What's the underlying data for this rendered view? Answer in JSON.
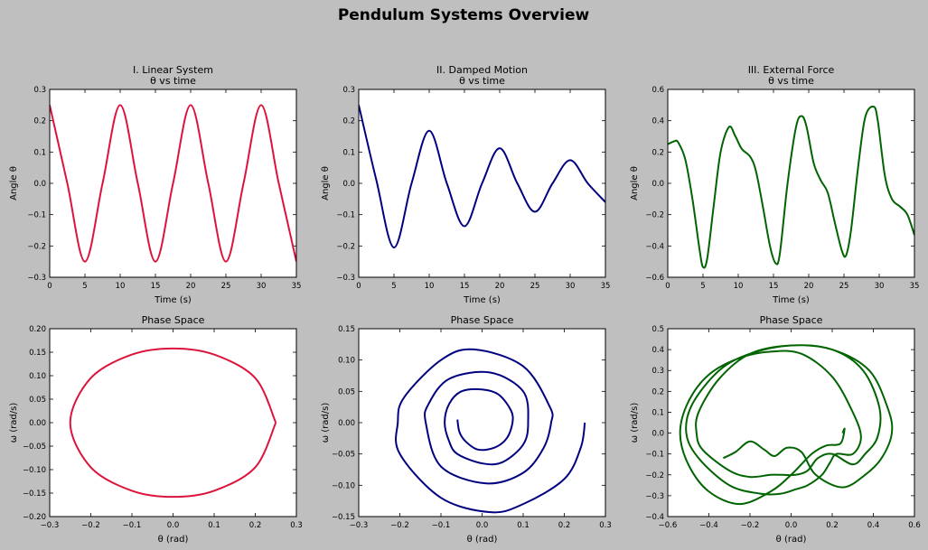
{
  "figure": {
    "suptitle": "Pendulum Systems Overview"
  },
  "chart_data": [
    {
      "type": "line",
      "title": "I. Linear System\nθ vs time",
      "xlabel": "Time (s)",
      "ylabel": "Angle θ",
      "xlim": [
        0,
        35
      ],
      "ylim": [
        -0.3,
        0.3
      ],
      "xticks": [
        0,
        5,
        10,
        15,
        20,
        25,
        30,
        35
      ],
      "xtick_labels": [
        "0",
        "5",
        "10",
        "15",
        "20",
        "25",
        "30",
        "35"
      ],
      "yticks": [
        -0.3,
        -0.2,
        -0.1,
        0,
        0.1,
        0.2,
        0.3
      ],
      "ytick_labels": [
        "−0.3",
        "−0.2",
        "−0.1",
        "0.0",
        "0.1",
        "0.2",
        "0.3"
      ],
      "color": "#dc143c",
      "series": [
        {
          "x": [
            0,
            2.5,
            5,
            7.5,
            10,
            12.5,
            15,
            17.5,
            20,
            22.5,
            25,
            27.5,
            30,
            32.5,
            35
          ],
          "y": [
            0.25,
            0,
            -0.25,
            0,
            0.25,
            0,
            -0.25,
            0,
            0.25,
            0,
            -0.25,
            0,
            0.25,
            0,
            -0.25
          ]
        }
      ]
    },
    {
      "type": "line",
      "title": "II. Damped Motion\nθ vs time",
      "xlabel": "Time (s)",
      "ylabel": "Angle θ",
      "xlim": [
        0,
        35
      ],
      "ylim": [
        -0.3,
        0.3
      ],
      "xticks": [
        0,
        5,
        10,
        15,
        20,
        25,
        30,
        35
      ],
      "xtick_labels": [
        "0",
        "5",
        "10",
        "15",
        "20",
        "25",
        "30",
        "35"
      ],
      "yticks": [
        -0.3,
        -0.2,
        -0.1,
        0,
        0.1,
        0.2,
        0.3
      ],
      "ytick_labels": [
        "−0.3",
        "−0.2",
        "−0.1",
        "0.0",
        "0.1",
        "0.2",
        "0.3"
      ],
      "color": "#000080",
      "series": [
        {
          "x": [
            0,
            2.5,
            5,
            7.5,
            10,
            12.5,
            15,
            17.5,
            20,
            22.5,
            25,
            27.5,
            30,
            32.5,
            35
          ],
          "y": [
            0.25,
            0.01,
            -0.205,
            0.0,
            0.168,
            0.0,
            -0.137,
            0.0,
            0.112,
            0.0,
            -0.091,
            0.0,
            0.074,
            0.0,
            -0.06
          ]
        }
      ]
    },
    {
      "type": "line",
      "title": "III. External Force\nθ vs time",
      "xlabel": "Time (s)",
      "ylabel": "Angle θ",
      "xlim": [
        0,
        35
      ],
      "ylim": [
        -0.6,
        0.6
      ],
      "xticks": [
        0,
        5,
        10,
        15,
        20,
        25,
        30,
        35
      ],
      "xtick_labels": [
        "0",
        "5",
        "10",
        "15",
        "20",
        "25",
        "30",
        "35"
      ],
      "yticks": [
        -0.6,
        -0.4,
        -0.2,
        0,
        0.2,
        0.4,
        0.6
      ],
      "ytick_labels": [
        "−0.6",
        "−0.4",
        "−0.2",
        "0.0",
        "0.2",
        "0.4",
        "0.6"
      ],
      "color": "#006400",
      "series": [
        {
          "x": [
            0,
            1,
            1.5,
            2.5,
            3.5,
            4.5,
            5,
            5.6,
            6.5,
            7.5,
            8.7,
            9.6,
            10.5,
            11.7,
            12.5,
            13.5,
            14.5,
            15.3,
            15.9,
            17,
            18.2,
            19,
            19.7,
            20.7,
            21.7,
            22.7,
            23.7,
            24.7,
            25.3,
            26,
            27,
            28,
            29.2,
            29.8,
            30.8,
            31.8,
            33,
            34,
            35
          ],
          "y": [
            0.25,
            0.27,
            0.26,
            0.15,
            -0.1,
            -0.42,
            -0.535,
            -0.48,
            -0.15,
            0.2,
            0.36,
            0.3,
            0.22,
            0.17,
            0.08,
            -0.15,
            -0.4,
            -0.51,
            -0.45,
            0.0,
            0.36,
            0.43,
            0.36,
            0.13,
            0.02,
            -0.06,
            -0.25,
            -0.43,
            -0.46,
            -0.3,
            0.1,
            0.42,
            0.49,
            0.4,
            0.05,
            -0.1,
            -0.15,
            -0.2,
            -0.33
          ]
        }
      ]
    },
    {
      "type": "line",
      "title": "Phase Space",
      "xlabel": "θ (rad)",
      "ylabel": "ω (rad/s)",
      "xlim": [
        -0.3,
        0.3
      ],
      "ylim": [
        -0.2,
        0.2
      ],
      "xticks": [
        -0.3,
        -0.2,
        -0.1,
        0,
        0.1,
        0.2,
        0.3
      ],
      "xtick_labels": [
        "−0.3",
        "−0.2",
        "−0.1",
        "0.0",
        "0.1",
        "0.2",
        "0.3"
      ],
      "yticks": [
        -0.2,
        -0.15,
        -0.1,
        -0.05,
        0,
        0.05,
        0.1,
        0.15,
        0.2
      ],
      "ytick_labels": [
        "−0.20",
        "−0.15",
        "−0.10",
        "−0.05",
        "0.00",
        "0.05",
        "0.10",
        "0.15",
        "0.20"
      ],
      "color": "#dc143c",
      "series": [
        {
          "x": [
            0.25,
            0.2,
            0.1,
            0,
            -0.1,
            -0.2,
            -0.25,
            -0.2,
            -0.1,
            0,
            0.1,
            0.2,
            0.25
          ],
          "y": [
            0,
            -0.095,
            -0.145,
            -0.158,
            -0.145,
            -0.095,
            0,
            0.095,
            0.145,
            0.158,
            0.145,
            0.095,
            0
          ]
        }
      ]
    },
    {
      "type": "line",
      "title": "Phase Space",
      "xlabel": "θ (rad)",
      "ylabel": "ω (rad/s)",
      "xlim": [
        -0.3,
        0.3
      ],
      "ylim": [
        -0.15,
        0.15
      ],
      "xticks": [
        -0.3,
        -0.2,
        -0.1,
        0,
        0.1,
        0.2,
        0.3
      ],
      "xtick_labels": [
        "−0.3",
        "−0.2",
        "−0.1",
        "0.0",
        "0.1",
        "0.2",
        "0.3"
      ],
      "yticks": [
        -0.15,
        -0.1,
        -0.05,
        0,
        0.05,
        0.1,
        0.15
      ],
      "ytick_labels": [
        "−0.15",
        "−0.10",
        "−0.05",
        "0.00",
        "0.05",
        "0.10",
        "0.15"
      ],
      "color": "#000080",
      "series": [
        {
          "x": [
            0.25,
            0.24,
            0.2,
            0.1,
            0.02,
            -0.1,
            -0.2,
            -0.205,
            -0.19,
            -0.1,
            -0.02,
            0.1,
            0.165,
            0.168,
            0.15,
            0.1,
            0.01,
            -0.1,
            -0.137,
            -0.13,
            -0.08,
            0.02,
            0.1,
            0.112,
            0.1,
            0.05,
            0.0,
            -0.06,
            -0.08,
            -0.091,
            -0.08,
            -0.05,
            0.0,
            0.04,
            0.07,
            0.074,
            0.06,
            0.03,
            -0.01,
            -0.04,
            -0.055,
            -0.06
          ],
          "y": [
            0,
            -0.04,
            -0.09,
            -0.13,
            -0.143,
            -0.12,
            -0.05,
            0,
            0.04,
            0.1,
            0.117,
            0.09,
            0.025,
            0,
            -0.04,
            -0.08,
            -0.097,
            -0.07,
            0,
            0.03,
            0.07,
            0.08,
            0.05,
            0,
            -0.035,
            -0.063,
            -0.065,
            -0.05,
            -0.03,
            0,
            0.03,
            0.05,
            0.053,
            0.045,
            0.02,
            0,
            -0.025,
            -0.04,
            -0.043,
            -0.03,
            -0.015,
            0.005
          ]
        }
      ]
    },
    {
      "type": "line",
      "title": "Phase Space",
      "xlabel": "θ (rad)",
      "ylabel": "ω (rad/s)",
      "xlim": [
        -0.6,
        0.6
      ],
      "ylim": [
        -0.4,
        0.5
      ],
      "xticks": [
        -0.6,
        -0.4,
        -0.2,
        0,
        0.2,
        0.4,
        0.6
      ],
      "xtick_labels": [
        "−0.6",
        "−0.4",
        "−0.2",
        "0.0",
        "0.2",
        "0.4",
        "0.6"
      ],
      "yticks": [
        -0.4,
        -0.3,
        -0.2,
        -0.1,
        0,
        0.1,
        0.2,
        0.3,
        0.4,
        0.5
      ],
      "ytick_labels": [
        "−0.4",
        "−0.3",
        "−0.2",
        "−0.1",
        "0.0",
        "0.1",
        "0.2",
        "0.3",
        "0.4",
        "0.5"
      ],
      "color": "#006400",
      "series": [
        {
          "x": [
            0.25,
            0.26,
            0.24,
            0.17,
            0.1,
            0.0,
            -0.1,
            -0.25,
            -0.4,
            -0.5,
            -0.54,
            -0.5,
            -0.4,
            -0.25,
            -0.1,
            0.05,
            0.2,
            0.3,
            0.34,
            0.3,
            0.22,
            0.19,
            0.15,
            0.08,
            0.02,
            -0.05,
            -0.15,
            -0.3,
            -0.45,
            -0.51,
            -0.48,
            -0.35,
            -0.2,
            0.0,
            0.2,
            0.35,
            0.43,
            0.42,
            0.36,
            0.3,
            0.2,
            0.13,
            0.08,
            0.02,
            -0.04,
            -0.1,
            -0.2,
            -0.3,
            -0.43,
            -0.46,
            -0.45,
            -0.35,
            -0.2,
            0.0,
            0.2,
            0.38,
            0.47,
            0.49,
            0.44,
            0.36,
            0.25,
            0.12,
            0.05,
            -0.02,
            -0.08,
            -0.13,
            -0.2,
            -0.27,
            -0.33
          ],
          "y": [
            0.0,
            0.02,
            -0.05,
            -0.06,
            -0.1,
            -0.2,
            -0.28,
            -0.34,
            -0.28,
            -0.15,
            0.0,
            0.15,
            0.28,
            0.36,
            0.39,
            0.38,
            0.27,
            0.1,
            -0.02,
            -0.1,
            -0.1,
            -0.14,
            -0.2,
            -0.25,
            -0.27,
            -0.29,
            -0.29,
            -0.25,
            -0.12,
            0.0,
            0.14,
            0.3,
            0.38,
            0.42,
            0.4,
            0.3,
            0.12,
            -0.02,
            -0.1,
            -0.15,
            -0.1,
            -0.12,
            -0.18,
            -0.2,
            -0.2,
            -0.2,
            -0.21,
            -0.18,
            -0.08,
            0.0,
            0.1,
            0.26,
            0.38,
            0.42,
            0.4,
            0.3,
            0.12,
            0.0,
            -0.12,
            -0.2,
            -0.26,
            -0.2,
            -0.09,
            -0.07,
            -0.11,
            -0.08,
            -0.04,
            -0.09,
            -0.12
          ]
        }
      ]
    }
  ]
}
